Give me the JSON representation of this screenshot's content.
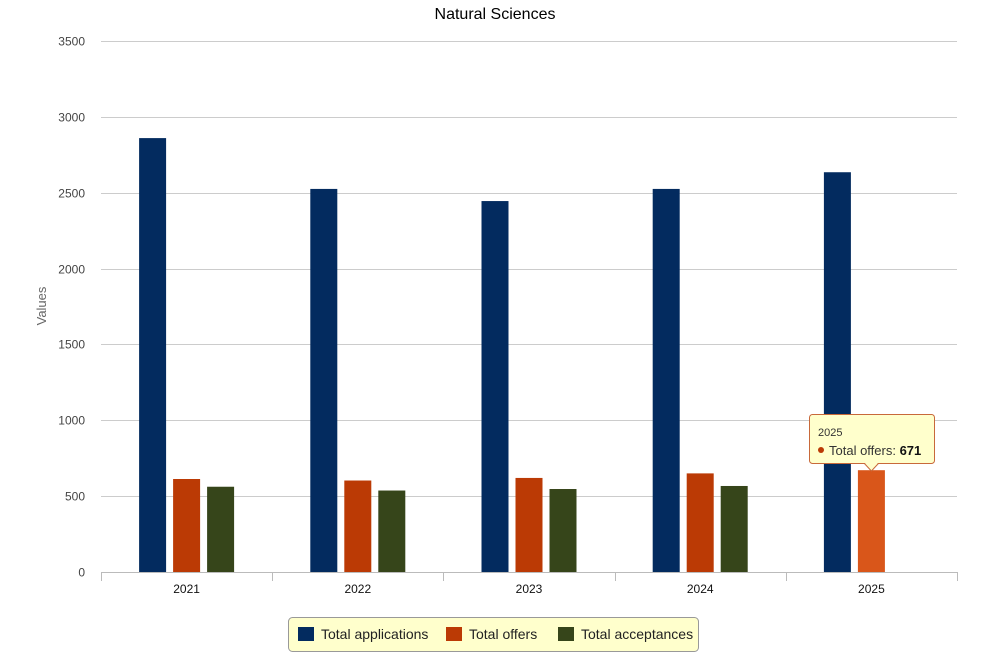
{
  "chart_data": {
    "type": "bar",
    "title": "Natural Sciences",
    "xlabel": "",
    "ylabel": "Values",
    "ylim": [
      0,
      3500
    ],
    "yticks": [
      0,
      500,
      1000,
      1500,
      2000,
      2500,
      3000,
      3500
    ],
    "categories": [
      "2021",
      "2022",
      "2023",
      "2024",
      "2025"
    ],
    "grid": true,
    "legend_position": "bottom-center",
    "series": [
      {
        "name": "Total applications",
        "color": "#032b5f",
        "values": [
          2860,
          2525,
          2445,
          2525,
          2635
        ]
      },
      {
        "name": "Total offers",
        "color": "#bb3a05",
        "values": [
          613,
          603,
          620,
          650,
          671
        ]
      },
      {
        "name": "Total acceptances",
        "color": "#36451a",
        "values": [
          562,
          537,
          547,
          567,
          null
        ]
      }
    ],
    "tooltip": {
      "category": "2025",
      "series_label": "Total offers:",
      "value": "671",
      "highlight_color": "#d9561a"
    }
  }
}
